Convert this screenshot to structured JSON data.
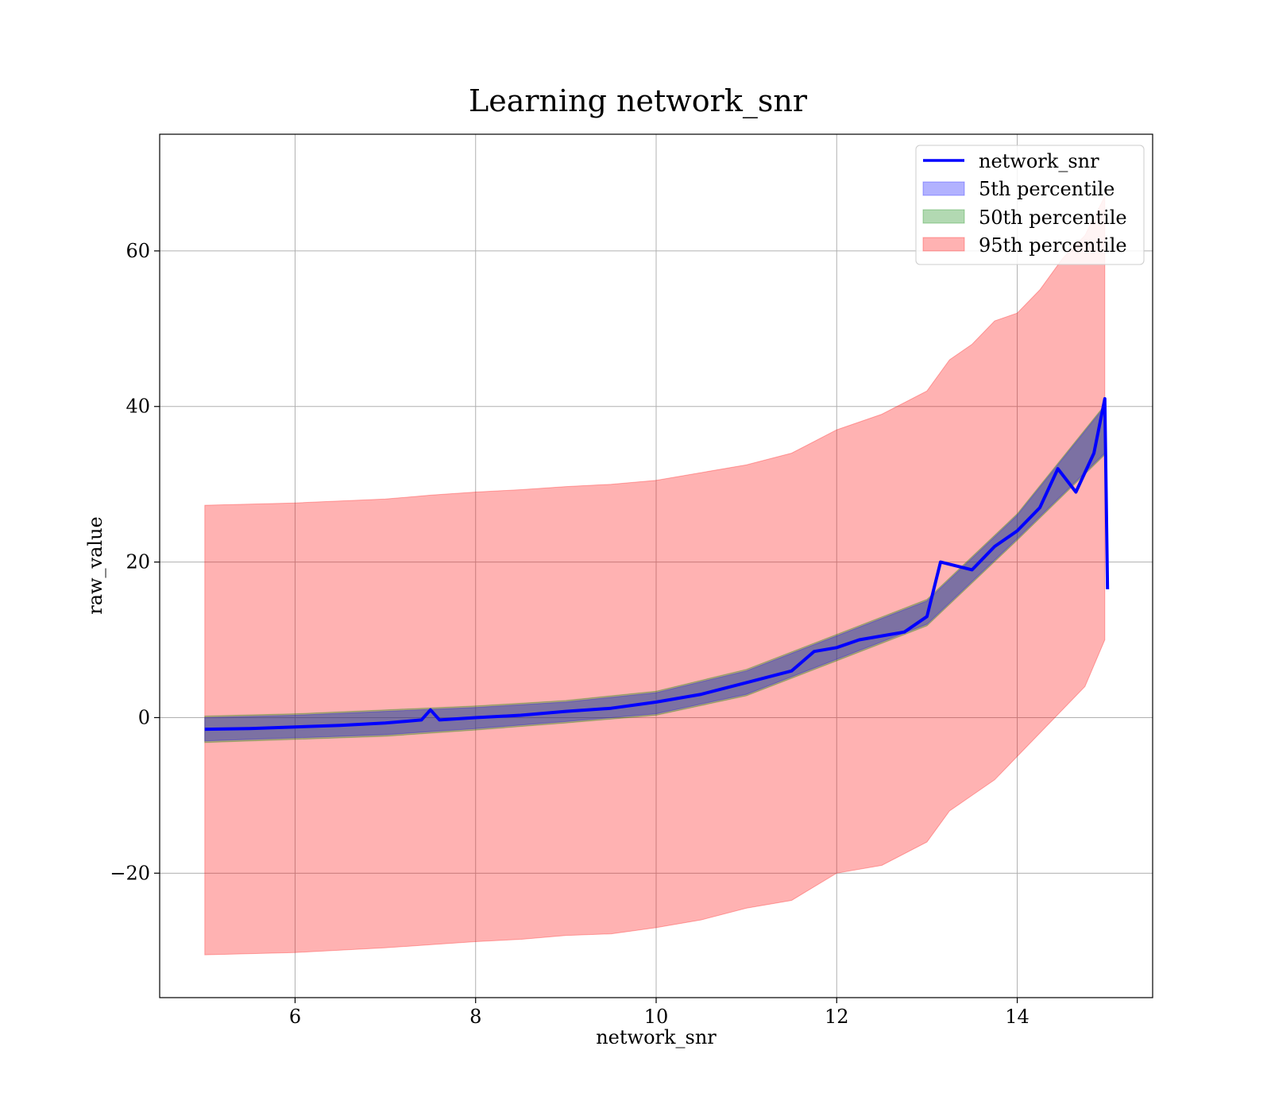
{
  "chart_data": {
    "type": "line",
    "title": "Learning network_snr",
    "xlabel": "network_snr",
    "ylabel": "raw_value",
    "xlim": [
      4.5,
      15.5
    ],
    "ylim": [
      -36,
      75
    ],
    "grid": true,
    "legend_position": "top-right",
    "x_ticks": [
      6,
      8,
      10,
      12,
      14
    ],
    "x_tick_labels": [
      "6",
      "8",
      "10",
      "12",
      "14"
    ],
    "y_ticks": [
      -20,
      0,
      20,
      40,
      60
    ],
    "y_tick_labels": [
      "−20",
      "0",
      "20",
      "40",
      "60"
    ],
    "colors": {
      "line": "#0000ff",
      "band_5th": "#0000ff",
      "band_50th": "#008000",
      "band_95th": "#ff0000"
    },
    "series": [
      {
        "name": "network_snr",
        "kind": "line",
        "x": [
          5.0,
          5.5,
          6.0,
          6.5,
          7.0,
          7.4,
          7.5,
          7.6,
          8.0,
          8.5,
          9.0,
          9.5,
          10.0,
          10.5,
          11.0,
          11.5,
          11.75,
          12.0,
          12.25,
          12.5,
          12.75,
          13.0,
          13.15,
          13.5,
          13.75,
          14.0,
          14.25,
          14.45,
          14.65,
          14.85,
          14.97,
          15.0
        ],
        "values": [
          -1.5,
          -1.4,
          -1.2,
          -1.0,
          -0.7,
          -0.3,
          1.0,
          -0.3,
          0.0,
          0.3,
          0.8,
          1.2,
          2.0,
          3.0,
          4.5,
          6.0,
          8.5,
          9.0,
          10.0,
          10.5,
          11.0,
          13.0,
          20.0,
          19.0,
          22.0,
          24.0,
          27.0,
          32.0,
          29.0,
          34.0,
          41.0,
          16.5
        ]
      },
      {
        "name": "5th percentile",
        "kind": "band",
        "x": [
          5.0,
          6.0,
          7.0,
          8.0,
          9.0,
          10.0,
          11.0,
          12.0,
          13.0,
          14.0,
          14.97
        ],
        "lower": [
          -3.0,
          -2.6,
          -2.2,
          -1.4,
          -0.5,
          0.5,
          3.0,
          7.5,
          12.0,
          23.0,
          34.0
        ],
        "upper": [
          0.0,
          0.3,
          0.8,
          1.3,
          2.0,
          3.2,
          6.0,
          10.5,
          15.0,
          26.0,
          40.0
        ]
      },
      {
        "name": "50th percentile",
        "kind": "band",
        "x": [
          5.0,
          6.0,
          7.0,
          8.0,
          9.0,
          10.0,
          11.0,
          12.0,
          13.0,
          14.0,
          14.97
        ],
        "lower": [
          -3.2,
          -2.8,
          -2.4,
          -1.6,
          -0.7,
          0.3,
          2.8,
          7.3,
          11.8,
          22.8,
          33.8
        ],
        "upper": [
          0.2,
          0.5,
          1.0,
          1.5,
          2.2,
          3.4,
          6.2,
          10.7,
          15.2,
          26.2,
          40.2
        ]
      },
      {
        "name": "95th percentile",
        "kind": "band",
        "x": [
          5.0,
          6.0,
          7.0,
          7.5,
          8.0,
          8.5,
          9.0,
          9.5,
          10.0,
          10.5,
          11.0,
          11.5,
          12.0,
          12.5,
          13.0,
          13.25,
          13.5,
          13.75,
          14.0,
          14.25,
          14.5,
          14.75,
          14.97
        ],
        "lower": [
          -30.5,
          -30.2,
          -29.6,
          -29.2,
          -28.8,
          -28.5,
          -28.0,
          -27.8,
          -27.0,
          -26.0,
          -24.5,
          -23.5,
          -20.0,
          -19.0,
          -16.0,
          -12.0,
          -10.0,
          -8.0,
          -5.0,
          -2.0,
          1.0,
          4.0,
          10.0
        ],
        "upper": [
          27.3,
          27.6,
          28.1,
          28.6,
          29.0,
          29.3,
          29.7,
          30.0,
          30.5,
          31.5,
          32.5,
          34.0,
          37.0,
          39.0,
          42.0,
          46.0,
          48.0,
          51.0,
          52.0,
          55.0,
          59.0,
          62.0,
          67.0
        ]
      }
    ],
    "legend": [
      "network_snr",
      "5th percentile",
      "50th percentile",
      "95th percentile"
    ]
  }
}
